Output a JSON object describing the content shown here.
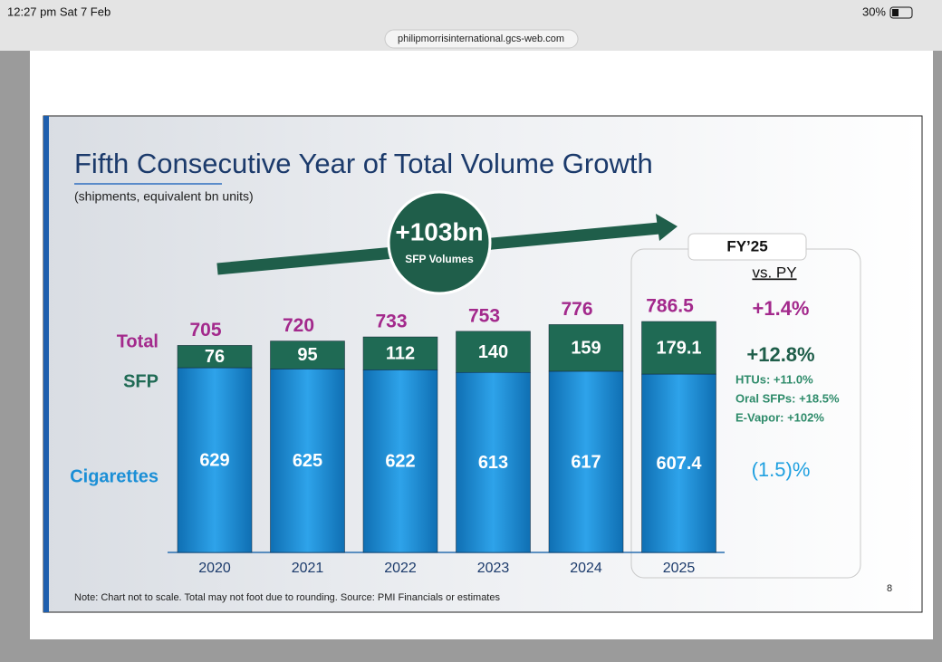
{
  "status_bar": {
    "time": "12:27 pm  Sat 7 Feb",
    "battery": "30%"
  },
  "browser": {
    "url": "philipmorrisinternational.gcs-web.com"
  },
  "slide": {
    "title": "Fifth Consecutive Year of Total Volume Growth",
    "subtitle": "(shipments, equivalent bn units)",
    "callout": {
      "headline": "+103bn",
      "text": "SFP Volumes"
    },
    "fy_box": {
      "header": "FY’25",
      "subheader": "vs. PY",
      "total_change": "+1.4%",
      "sfp_change": "+12.8%",
      "sfp_details": [
        "HTUs: +11.0%",
        "Oral SFPs: +18.5%",
        "E-Vapor: +102%"
      ],
      "cigarettes_change": "(1.5)%"
    },
    "note": "Note: Chart not to scale. Total may not foot due to rounding. Source: PMI Financials or estimates",
    "page_number": "8"
  },
  "chart_data": {
    "type": "stacked_bar",
    "categories": [
      "2020",
      "2021",
      "2022",
      "2023",
      "2024",
      "2025"
    ],
    "series": [
      {
        "name": "Cigarettes",
        "color": "#1b8fd6",
        "values": [
          629,
          625,
          622,
          613,
          617,
          607.4
        ]
      },
      {
        "name": "SFP",
        "color": "#1f6a54",
        "values": [
          76,
          95,
          112,
          140,
          159,
          179.1
        ]
      }
    ],
    "total_label": "Total",
    "total_color": "#a3298c",
    "totals": [
      705,
      720,
      733,
      753,
      776,
      786.5
    ]
  }
}
